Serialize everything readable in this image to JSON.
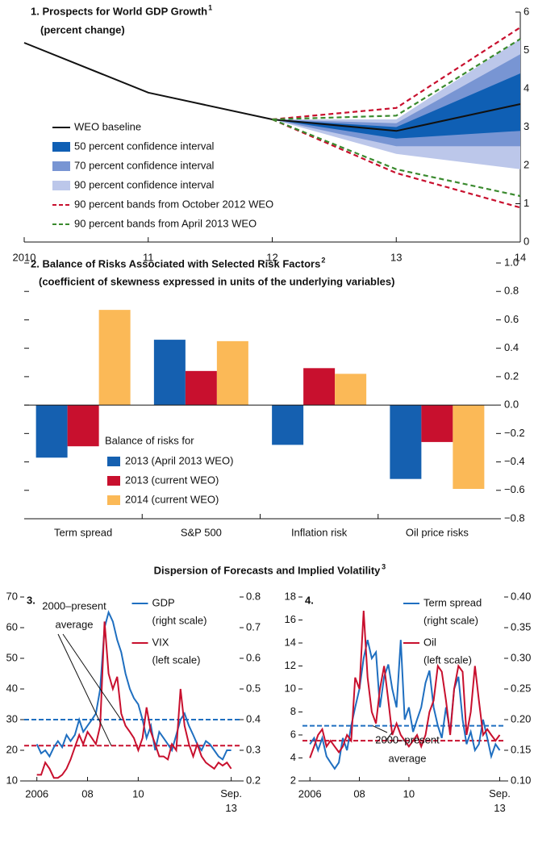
{
  "heading": "Dispersion of Forecasts and Implied Volatility",
  "heading_note": "3",
  "chart_data": [
    {
      "type": "fan",
      "title": "1. Prospects for World GDP Growth",
      "title_note": "1",
      "subtitle": "(percent change)",
      "categories": [
        "2010",
        "11",
        "12",
        "13",
        "14"
      ],
      "ylim": [
        0,
        6
      ],
      "yticks": [
        0,
        1,
        2,
        3,
        4,
        5,
        6
      ],
      "series": [
        {
          "name": "WEO baseline",
          "kind": "line",
          "color": "#111111",
          "values": [
            5.2,
            3.9,
            3.2,
            2.9,
            3.6
          ]
        },
        {
          "name": "50 percent confidence interval",
          "kind": "band",
          "color": "#0f5fb4",
          "lower": [
            null,
            null,
            3.2,
            2.7,
            2.9
          ],
          "upper": [
            null,
            null,
            3.2,
            3.0,
            4.4
          ]
        },
        {
          "name": "70 percent confidence interval",
          "kind": "band",
          "color": "#7895d3",
          "lower": [
            null,
            null,
            3.2,
            2.5,
            2.5
          ],
          "upper": [
            null,
            null,
            3.2,
            3.1,
            4.9
          ]
        },
        {
          "name": "90 percent confidence interval",
          "kind": "band",
          "color": "#bcc7ea",
          "lower": [
            null,
            null,
            3.2,
            2.3,
            1.9
          ],
          "upper": [
            null,
            null,
            3.2,
            3.2,
            5.3
          ]
        },
        {
          "name": "90 percent bands from October 2012 WEO",
          "kind": "dashed",
          "color": "#c8102e",
          "lower": [
            null,
            null,
            3.2,
            1.8,
            0.9
          ],
          "upper": [
            null,
            null,
            3.2,
            3.5,
            5.6
          ]
        },
        {
          "name": "90 percent bands from April 2013 WEO",
          "kind": "dashed",
          "color": "#3a8a2e",
          "lower": [
            null,
            null,
            3.2,
            1.9,
            1.2
          ],
          "upper": [
            null,
            null,
            3.2,
            3.3,
            5.3
          ]
        }
      ]
    },
    {
      "type": "bar",
      "title": "2. Balance of Risks Associated with Selected Risk Factors",
      "title_note": "2",
      "subtitle": "(coefficient of skewness expressed in units of the underlying variables)",
      "categories": [
        "Term spread",
        "S&P 500",
        "Inflation risk",
        "Oil price risks"
      ],
      "ylim": [
        -0.8,
        1.0
      ],
      "yticks": [
        {
          "value": -0.8,
          "label": "−0.8"
        },
        {
          "value": -0.6,
          "label": "−0.6"
        },
        {
          "value": -0.4,
          "label": "−0.4"
        },
        {
          "value": -0.2,
          "label": "−0.2"
        },
        {
          "value": 0,
          "label": "0.0"
        },
        0.2,
        0.4,
        0.6,
        0.8,
        {
          "value": 1,
          "label": "1.0"
        }
      ],
      "legend_title": "Balance of risks for",
      "series": [
        {
          "name": "2013 (April 2013 WEO)",
          "color": "#1560b0",
          "values": [
            -0.37,
            0.46,
            -0.28,
            -0.52
          ]
        },
        {
          "name": "2013 (current WEO)",
          "color": "#c8102e",
          "values": [
            -0.29,
            0.24,
            0.26,
            -0.26
          ]
        },
        {
          "name": "2014 (current WEO)",
          "color": "#fbb957",
          "values": [
            0.67,
            0.45,
            0.22,
            -0.59
          ]
        }
      ]
    },
    {
      "type": "dual_line",
      "title": "3.",
      "annotation": [
        "2000–present",
        "average"
      ],
      "x": [
        2006,
        2006.17,
        2006.33,
        2006.5,
        2006.67,
        2006.83,
        2007,
        2007.17,
        2007.33,
        2007.5,
        2007.67,
        2007.83,
        2008,
        2008.17,
        2008.33,
        2008.5,
        2008.67,
        2008.83,
        2009,
        2009.17,
        2009.33,
        2009.5,
        2009.67,
        2009.83,
        2010,
        2010.17,
        2010.33,
        2010.5,
        2010.67,
        2010.83,
        2011,
        2011.17,
        2011.33,
        2011.5,
        2011.67,
        2011.83,
        2012,
        2012.17,
        2012.33,
        2012.5,
        2012.67,
        2012.83,
        2013,
        2013.17,
        2013.33,
        2013.5,
        2013.67
      ],
      "xlim": [
        2005.5,
        2014
      ],
      "xticks": [
        {
          "value": 2006,
          "label": "2006"
        },
        {
          "value": 2008,
          "label": "08"
        },
        {
          "value": 2010,
          "label": "10"
        },
        {
          "value": 2013.67,
          "label": "Sep. 13"
        }
      ],
      "ylim": [
        10,
        70
      ],
      "yticks": [
        10,
        20,
        30,
        40,
        50,
        60,
        70
      ],
      "y2lim": [
        0.2,
        0.8
      ],
      "y2ticks": [
        0.2,
        0.3,
        0.4,
        0.5,
        0.6,
        0.7,
        0.8
      ],
      "series": [
        {
          "name": "GDP",
          "note": "(right scale)",
          "axis": "y2",
          "color": "#1f6fc0",
          "values": [
            0.32,
            0.29,
            0.3,
            0.28,
            0.31,
            0.33,
            0.31,
            0.35,
            0.33,
            0.35,
            0.4,
            0.36,
            0.38,
            0.4,
            0.42,
            0.5,
            0.7,
            0.75,
            0.72,
            0.66,
            0.62,
            0.55,
            0.5,
            0.47,
            0.45,
            0.4,
            0.34,
            0.38,
            0.3,
            0.36,
            0.34,
            0.32,
            0.3,
            0.35,
            0.4,
            0.42,
            0.38,
            0.35,
            0.32,
            0.3,
            0.33,
            0.32,
            0.3,
            0.28,
            0.27,
            0.3,
            0.3
          ]
        },
        {
          "name": "VIX",
          "note": "(left scale)",
          "axis": "y",
          "color": "#c8102e",
          "values": [
            12,
            12,
            16,
            14,
            11,
            11,
            12,
            14,
            17,
            21,
            25,
            22,
            26,
            24,
            22,
            28,
            62,
            45,
            40,
            44,
            32,
            28,
            26,
            24,
            20,
            24,
            34,
            26,
            22,
            18,
            18,
            17,
            22,
            20,
            40,
            28,
            22,
            18,
            22,
            18,
            16,
            15,
            14,
            16,
            15,
            16,
            14
          ]
        }
      ],
      "reference_lines": [
        {
          "axis": "y2",
          "value": 0.4,
          "color": "#1f6fc0"
        },
        {
          "axis": "y",
          "value": 21.5,
          "color": "#c8102e"
        }
      ]
    },
    {
      "type": "dual_line",
      "title": "4.",
      "annotation": [
        "2000–present",
        "average"
      ],
      "x": [
        2006,
        2006.17,
        2006.33,
        2006.5,
        2006.67,
        2006.83,
        2007,
        2007.17,
        2007.33,
        2007.5,
        2007.67,
        2007.83,
        2008,
        2008.17,
        2008.33,
        2008.5,
        2008.67,
        2008.83,
        2009,
        2009.17,
        2009.33,
        2009.5,
        2009.67,
        2009.83,
        2010,
        2010.17,
        2010.33,
        2010.5,
        2010.67,
        2010.83,
        2011,
        2011.17,
        2011.33,
        2011.5,
        2011.67,
        2011.83,
        2012,
        2012.17,
        2012.33,
        2012.5,
        2012.67,
        2012.83,
        2013,
        2013.17,
        2013.33,
        2013.5,
        2013.67
      ],
      "xlim": [
        2005.7,
        2013.85
      ],
      "xticks": [
        {
          "value": 2006,
          "label": "2006"
        },
        {
          "value": 2008,
          "label": "08"
        },
        {
          "value": 2010,
          "label": "10"
        },
        {
          "value": 2013.67,
          "label": "Sep. 13"
        }
      ],
      "ylim": [
        2,
        18
      ],
      "yticks": [
        2,
        4,
        6,
        8,
        10,
        12,
        14,
        16,
        18
      ],
      "y2lim": [
        0.1,
        0.4
      ],
      "y2ticks": [
        {
          "value": 0.1,
          "label": "0.10"
        },
        0.15,
        {
          "value": 0.2,
          "label": "0.20"
        },
        0.25,
        {
          "value": 0.3,
          "label": "0.30"
        },
        0.35,
        {
          "value": 0.4,
          "label": "0.40"
        }
      ],
      "series": [
        {
          "name": "Term spread",
          "note": "(right scale)",
          "axis": "y2",
          "color": "#1f6fc0",
          "values": [
            0.16,
            0.17,
            0.15,
            0.17,
            0.14,
            0.13,
            0.12,
            0.13,
            0.17,
            0.15,
            0.19,
            0.22,
            0.25,
            0.3,
            0.33,
            0.3,
            0.31,
            0.22,
            0.27,
            0.29,
            0.25,
            0.22,
            0.33,
            0.2,
            0.22,
            0.18,
            0.2,
            0.22,
            0.26,
            0.28,
            0.22,
            0.19,
            0.17,
            0.22,
            0.18,
            0.25,
            0.27,
            0.2,
            0.16,
            0.18,
            0.15,
            0.16,
            0.2,
            0.17,
            0.14,
            0.16,
            0.15
          ]
        },
        {
          "name": "Oil",
          "note": "(left scale)",
          "axis": "y",
          "color": "#c8102e",
          "values": [
            4,
            5,
            6,
            6.5,
            5,
            5.5,
            5,
            4.5,
            5,
            6,
            5.5,
            11,
            10,
            16.8,
            11,
            8,
            7,
            10,
            12,
            9,
            6,
            7,
            6,
            5.5,
            5,
            5.5,
            6,
            5,
            6,
            8,
            9,
            12,
            11.5,
            9,
            6,
            10,
            12,
            11.5,
            6,
            8,
            12,
            9,
            6,
            6.5,
            6,
            5.5,
            6
          ]
        }
      ],
      "reference_lines": [
        {
          "axis": "y2",
          "value": 0.19,
          "color": "#1f6fc0"
        },
        {
          "axis": "y",
          "value": 5.5,
          "color": "#c8102e"
        }
      ]
    }
  ]
}
